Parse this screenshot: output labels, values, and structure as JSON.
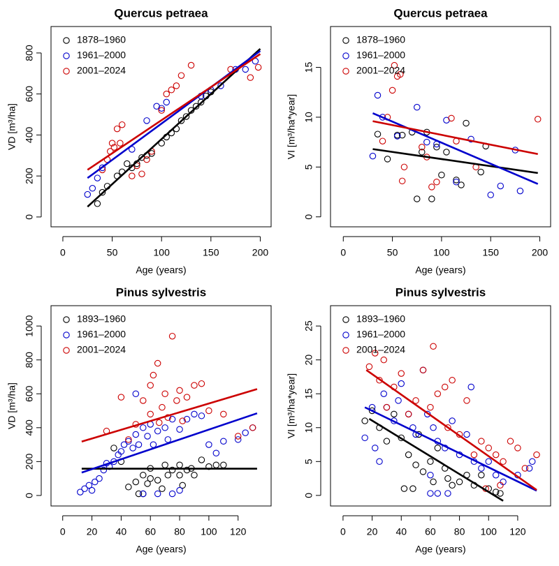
{
  "chart_data": [
    {
      "type": "scatter",
      "title": "Quercus petraea",
      "xlabel": "Age (years)",
      "ylabel": "VD [m³/ha]",
      "xlim": [
        -12,
        211
      ],
      "ylim": [
        -48,
        929
      ],
      "xticks": [
        0,
        50,
        100,
        150,
        200
      ],
      "yticks": [
        0,
        200,
        400,
        600,
        800
      ],
      "legend": "top-left",
      "series": [
        {
          "name": "1878–1960",
          "color": "#000000",
          "x": [
            35,
            40,
            45,
            55,
            60,
            65,
            70,
            75,
            80,
            85,
            90,
            100,
            105,
            110,
            115,
            120,
            125,
            130,
            135,
            140,
            145,
            150
          ],
          "y": [
            65,
            120,
            150,
            200,
            220,
            260,
            240,
            260,
            290,
            300,
            310,
            360,
            390,
            410,
            430,
            470,
            490,
            520,
            540,
            560,
            590,
            610
          ],
          "fit": {
            "x": [
              25,
              200
            ],
            "y": [
              50,
              820
            ]
          }
        },
        {
          "name": "1961–2000",
          "color": "#0000cc",
          "x": [
            25,
            30,
            35,
            40,
            70,
            85,
            95,
            100,
            105,
            140,
            150,
            160,
            175,
            185,
            195
          ],
          "y": [
            110,
            140,
            190,
            240,
            330,
            470,
            540,
            530,
            560,
            590,
            620,
            640,
            720,
            720,
            760
          ],
          "fit": {
            "x": [
              25,
              200
            ],
            "y": [
              190,
              810
            ]
          }
        },
        {
          "name": "2001–2024",
          "color": "#cc0000",
          "x": [
            40,
            45,
            48,
            50,
            52,
            55,
            58,
            60,
            70,
            75,
            80,
            85,
            90,
            100,
            105,
            110,
            115,
            120,
            130,
            170,
            190,
            198
          ],
          "y": [
            230,
            280,
            320,
            360,
            340,
            430,
            360,
            450,
            200,
            250,
            210,
            280,
            320,
            520,
            600,
            620,
            640,
            690,
            740,
            720,
            680,
            730
          ],
          "fit": {
            "x": [
              25,
              200
            ],
            "y": [
              230,
              795
            ]
          }
        }
      ]
    },
    {
      "type": "scatter",
      "title": "Quercus petraea",
      "xlabel": "Age (years)",
      "ylabel": "VI [m³/ha*year]",
      "xlim": [
        -13,
        211
      ],
      "ylim": [
        -1,
        19.1
      ],
      "xticks": [
        0,
        50,
        100,
        150,
        200
      ],
      "yticks": [
        0,
        5,
        10,
        15
      ],
      "legend": "top-left",
      "series": [
        {
          "name": "1878–1960",
          "color": "#000000",
          "x": [
            35,
            45,
            55,
            60,
            70,
            75,
            80,
            85,
            90,
            95,
            100,
            105,
            115,
            120,
            125,
            140,
            145
          ],
          "y": [
            8.3,
            5.8,
            8.2,
            8.2,
            8.5,
            1.8,
            6.5,
            8.5,
            1.8,
            7.0,
            4.2,
            6.5,
            3.7,
            3.2,
            9.4,
            4.5,
            7.1
          ],
          "fit": {
            "x": [
              30,
              198
            ],
            "y": [
              6.8,
              4.4
            ]
          }
        },
        {
          "name": "1961–2000",
          "color": "#0000cc",
          "x": [
            30,
            35,
            40,
            55,
            75,
            85,
            95,
            105,
            115,
            130,
            150,
            160,
            175,
            180
          ],
          "y": [
            6.1,
            12.2,
            10.0,
            8.1,
            11.0,
            7.5,
            7.3,
            9.7,
            3.5,
            7.8,
            2.2,
            3.1,
            6.7,
            2.6
          ],
          "fit": {
            "x": [
              30,
              198
            ],
            "y": [
              10.4,
              3.3
            ]
          }
        },
        {
          "name": "2001–2024",
          "color": "#cc0000",
          "x": [
            40,
            45,
            50,
            52,
            55,
            58,
            60,
            62,
            80,
            85,
            90,
            95,
            110,
            115,
            135,
            198
          ],
          "y": [
            7.6,
            10.0,
            12.7,
            15.2,
            14.1,
            14.3,
            3.6,
            5.0,
            7.0,
            6.0,
            3.0,
            3.5,
            9.9,
            7.6,
            5.0,
            9.8
          ],
          "fit": {
            "x": [
              30,
              198
            ],
            "y": [
              9.6,
              6.3
            ]
          }
        }
      ]
    },
    {
      "type": "scatter",
      "title": "Pinus sylvestris",
      "xlabel": "Age (years)",
      "ylabel": "VD [m³/ha]",
      "xlim": [
        -8,
        142.6
      ],
      "ylim": [
        -62,
        1120
      ],
      "xticks": [
        0,
        20,
        40,
        60,
        80,
        100,
        120
      ],
      "yticks": [
        0,
        200,
        400,
        600,
        800,
        1000
      ],
      "legend": "top-left",
      "series": [
        {
          "name": "1893–1960",
          "color": "#000000",
          "x": [
            35,
            40,
            45,
            50,
            52,
            55,
            55,
            60,
            60,
            65,
            70,
            72,
            75,
            80,
            80,
            82,
            85,
            88,
            90,
            95,
            100,
            105,
            110,
            58,
            68
          ],
          "y": [
            280,
            200,
            50,
            80,
            10,
            10,
            120,
            100,
            160,
            90,
            180,
            120,
            150,
            120,
            180,
            60,
            150,
            160,
            120,
            210,
            170,
            180,
            180,
            70,
            40
          ],
          "fit": {
            "x": [
              13,
              133
            ],
            "y": [
              158,
              158
            ]
          }
        },
        {
          "name": "1961–2000",
          "color": "#0000cc",
          "x": [
            12,
            15,
            18,
            20,
            22,
            25,
            28,
            30,
            32,
            35,
            38,
            40,
            42,
            45,
            48,
            50,
            52,
            55,
            58,
            60,
            62,
            65,
            70,
            72,
            75,
            80,
            85,
            90,
            95,
            100,
            105,
            110,
            120,
            125,
            130,
            55,
            65,
            75,
            50,
            80
          ],
          "y": [
            20,
            40,
            60,
            30,
            80,
            100,
            150,
            190,
            170,
            200,
            240,
            260,
            300,
            320,
            280,
            360,
            300,
            400,
            350,
            420,
            300,
            380,
            400,
            330,
            450,
            390,
            450,
            480,
            470,
            300,
            250,
            320,
            330,
            370,
            400,
            10,
            10,
            10,
            600,
            30
          ],
          "fit": {
            "x": [
              13,
              133
            ],
            "y": [
              135,
              485
            ]
          }
        },
        {
          "name": "2001–2024",
          "color": "#cc0000",
          "x": [
            30,
            40,
            45,
            50,
            55,
            60,
            62,
            65,
            68,
            70,
            72,
            75,
            78,
            80,
            85,
            90,
            95,
            100,
            110,
            120,
            130,
            60,
            66,
            82
          ],
          "y": [
            380,
            580,
            330,
            420,
            560,
            650,
            710,
            780,
            520,
            600,
            460,
            940,
            560,
            620,
            580,
            650,
            660,
            500,
            480,
            350,
            400,
            480,
            430,
            440
          ],
          "fit": {
            "x": [
              13,
              133
            ],
            "y": [
              318,
              628
            ]
          }
        }
      ]
    },
    {
      "type": "scatter",
      "title": "Pinus sylvestris",
      "xlabel": "Age (years)",
      "ylabel": "VI [m³/ha*year]",
      "xlim": [
        -8.6,
        142.6
      ],
      "ylim": [
        -1.56,
        28
      ],
      "xticks": [
        0,
        20,
        40,
        60,
        80,
        100,
        120
      ],
      "yticks": [
        0,
        5,
        10,
        15,
        20,
        25
      ],
      "legend": "top-left",
      "series": [
        {
          "name": "1893–1960",
          "color": "#000000",
          "x": [
            15,
            20,
            25,
            30,
            35,
            40,
            42,
            45,
            50,
            52,
            55,
            60,
            62,
            65,
            70,
            72,
            75,
            80,
            85,
            90,
            95,
            100,
            105,
            108,
            48
          ],
          "y": [
            11,
            12.5,
            10,
            8,
            12,
            8.5,
            1,
            6,
            4.5,
            9,
            3.5,
            5,
            2,
            7,
            4,
            2.5,
            1.5,
            2,
            3,
            1.5,
            3,
            1,
            0.5,
            0.3,
            1
          ],
          "fit": {
            "x": [
              18,
              110
            ],
            "y": [
              11.3,
              -0.8
            ]
          }
        },
        {
          "name": "1961–2000",
          "color": "#0000cc",
          "x": [
            15,
            20,
            22,
            25,
            28,
            30,
            35,
            38,
            40,
            45,
            48,
            50,
            55,
            58,
            60,
            62,
            65,
            70,
            72,
            75,
            80,
            85,
            88,
            90,
            95,
            100,
            105,
            110,
            120,
            128,
            130,
            60,
            65
          ],
          "y": [
            8.5,
            13,
            7,
            5,
            15,
            13,
            11,
            14,
            16.5,
            12,
            10,
            9,
            18.5,
            12,
            3,
            10,
            8,
            7,
            0.3,
            11,
            6,
            9,
            16,
            5,
            4,
            5,
            3,
            2,
            3,
            4,
            5,
            0.3,
            0.3
          ],
          "fit": {
            "x": [
              15,
              133
            ],
            "y": [
              13,
              0.7
            ]
          }
        },
        {
          "name": "2001–2024",
          "color": "#cc0000",
          "x": [
            18,
            22,
            25,
            28,
            30,
            35,
            40,
            45,
            50,
            55,
            60,
            62,
            65,
            70,
            72,
            75,
            80,
            85,
            90,
            95,
            100,
            105,
            110,
            115,
            120,
            125,
            133,
            98,
            108
          ],
          "y": [
            19,
            21,
            17,
            20,
            13,
            16,
            18,
            12,
            14,
            18.5,
            13,
            22,
            15,
            16,
            10,
            17,
            9,
            14,
            6,
            8,
            7,
            6,
            5,
            8,
            7,
            4,
            6,
            1,
            1.5
          ],
          "fit": {
            "x": [
              16,
              133
            ],
            "y": [
              18.5,
              0.8
            ]
          }
        }
      ]
    }
  ]
}
